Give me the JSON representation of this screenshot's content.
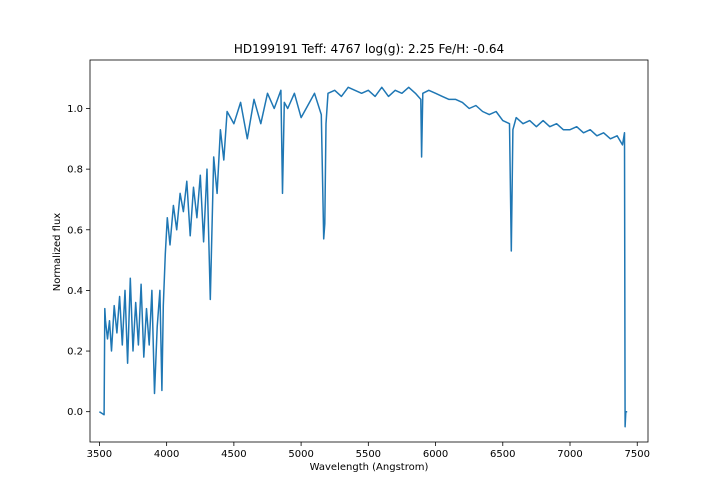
{
  "chart_data": {
    "type": "line",
    "title": "HD199191  Teff: 4767 log(g): 2.25 Fe/H: -0.64",
    "xlabel": "Wavelength (Angstrom)",
    "ylabel": "Normalized flux",
    "xlim": [
      3430,
      7580
    ],
    "ylim": [
      -0.1,
      1.16
    ],
    "xticks": [
      3500,
      4000,
      4500,
      5000,
      5500,
      6000,
      6500,
      7000,
      7500
    ],
    "yticks": [
      0.0,
      0.2,
      0.4,
      0.6,
      0.8,
      1.0
    ],
    "ytick_labels": [
      "0.0",
      "0.2",
      "0.4",
      "0.6",
      "0.8",
      "1.0"
    ],
    "grid": false,
    "series": [
      {
        "color": "#1f77b4",
        "x": [
          3500,
          3535,
          3540,
          3545,
          3560,
          3575,
          3590,
          3610,
          3630,
          3650,
          3670,
          3690,
          3710,
          3730,
          3750,
          3770,
          3790,
          3810,
          3830,
          3850,
          3870,
          3890,
          3910,
          3930,
          3950,
          3965,
          3975,
          3990,
          4005,
          4025,
          4050,
          4075,
          4100,
          4125,
          4150,
          4175,
          4200,
          4225,
          4250,
          4275,
          4300,
          4325,
          4350,
          4375,
          4400,
          4425,
          4450,
          4500,
          4550,
          4600,
          4650,
          4700,
          4750,
          4800,
          4850,
          4862,
          4875,
          4900,
          4950,
          5000,
          5050,
          5100,
          5150,
          5168,
          5176,
          5185,
          5200,
          5250,
          5300,
          5350,
          5400,
          5450,
          5500,
          5550,
          5600,
          5650,
          5700,
          5750,
          5800,
          5850,
          5890,
          5896,
          5905,
          5950,
          6000,
          6050,
          6100,
          6150,
          6200,
          6250,
          6300,
          6350,
          6400,
          6450,
          6500,
          6550,
          6563,
          6575,
          6600,
          6650,
          6700,
          6750,
          6800,
          6850,
          6900,
          6950,
          7000,
          7050,
          7100,
          7150,
          7200,
          7250,
          7300,
          7350,
          7390,
          7405,
          7410,
          7415,
          7425
        ],
        "y": [
          0.0,
          -0.01,
          0.34,
          0.3,
          0.24,
          0.3,
          0.2,
          0.35,
          0.26,
          0.38,
          0.22,
          0.4,
          0.16,
          0.44,
          0.2,
          0.36,
          0.22,
          0.42,
          0.18,
          0.34,
          0.22,
          0.4,
          0.06,
          0.28,
          0.4,
          0.07,
          0.35,
          0.52,
          0.64,
          0.55,
          0.68,
          0.6,
          0.72,
          0.66,
          0.76,
          0.58,
          0.74,
          0.64,
          0.78,
          0.56,
          0.8,
          0.37,
          0.84,
          0.72,
          0.93,
          0.83,
          0.99,
          0.95,
          1.02,
          0.9,
          1.03,
          0.95,
          1.05,
          1.0,
          1.06,
          0.72,
          1.02,
          1.0,
          1.05,
          0.97,
          1.01,
          1.05,
          0.98,
          0.57,
          0.62,
          0.95,
          1.05,
          1.06,
          1.04,
          1.07,
          1.06,
          1.05,
          1.06,
          1.04,
          1.07,
          1.04,
          1.06,
          1.05,
          1.07,
          1.05,
          1.03,
          0.84,
          1.05,
          1.06,
          1.05,
          1.04,
          1.03,
          1.03,
          1.02,
          1.0,
          1.01,
          0.99,
          0.98,
          0.99,
          0.96,
          0.95,
          0.53,
          0.93,
          0.97,
          0.95,
          0.96,
          0.94,
          0.96,
          0.94,
          0.95,
          0.93,
          0.93,
          0.94,
          0.92,
          0.93,
          0.91,
          0.92,
          0.9,
          0.91,
          0.88,
          0.92,
          -0.05,
          0.0,
          0.0
        ]
      }
    ]
  }
}
